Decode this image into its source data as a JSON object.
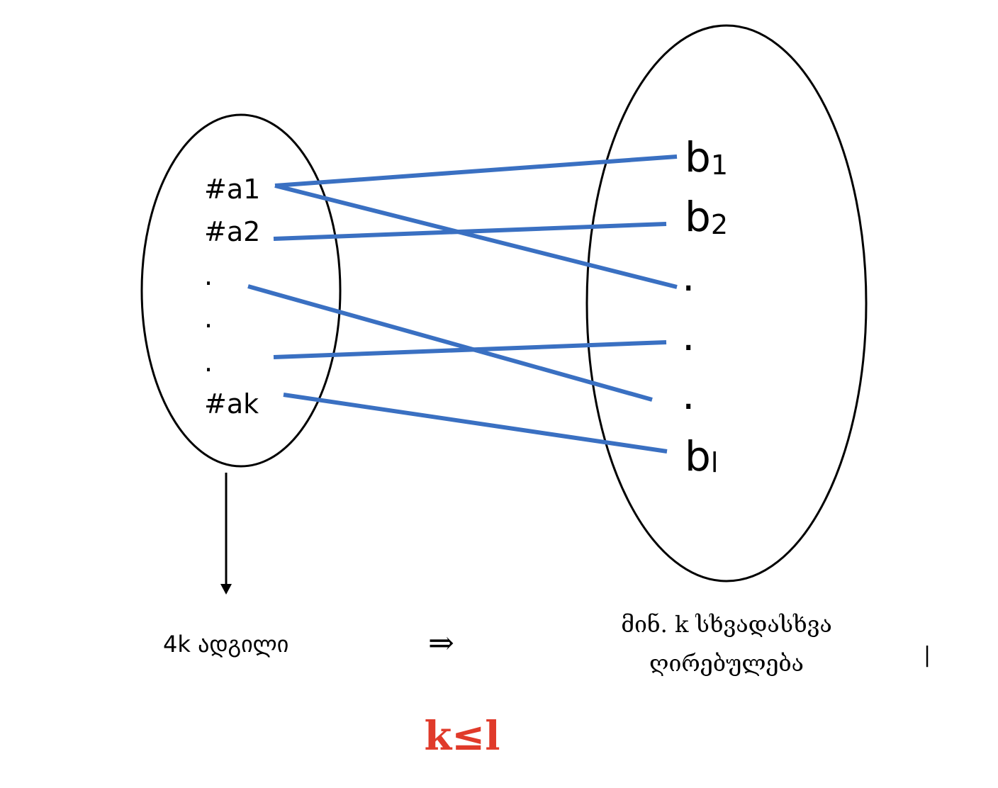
{
  "left_set": {
    "items": [
      "#a1",
      "#a2",
      ".",
      ".",
      ".",
      "#ak"
    ]
  },
  "right_set": {
    "items": [
      {
        "base": "b",
        "sub": "1"
      },
      {
        "base": "b",
        "sub": "2"
      },
      {
        "base": ".",
        "sub": ""
      },
      {
        "base": ".",
        "sub": ""
      },
      {
        "base": ".",
        "sub": ""
      },
      {
        "base": "b",
        "sub": "l"
      }
    ]
  },
  "captions": {
    "left": "4k ადგილი",
    "implies": "⇒",
    "right_line1": "მინ. k  სხვადასხვა",
    "right_line2": "ღირებულება",
    "cursor": "|"
  },
  "conclusion": "k≤l",
  "colors": {
    "line": "#3a70c2",
    "outline": "#000000",
    "conclusion": "#e03a2a"
  }
}
